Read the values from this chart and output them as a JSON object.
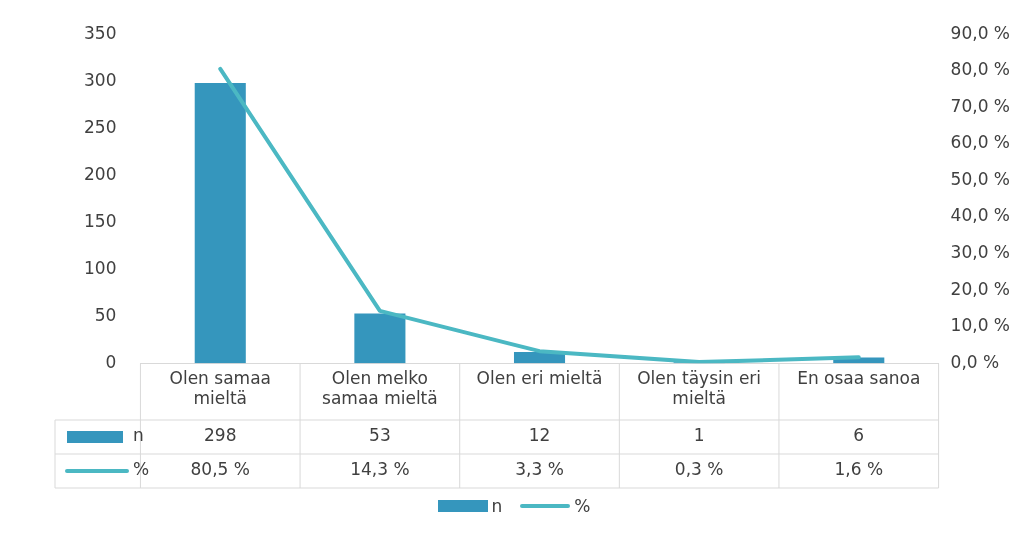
{
  "chart_data": {
    "type": "bar",
    "categories": [
      "Olen samaa mieltä",
      "Olen melko samaa mieltä",
      "Olen eri mieltä",
      "Olen täysin eri mieltä",
      "En osaa sanoa"
    ],
    "series": [
      {
        "name": "n",
        "color": "#3596bd",
        "values": [
          298,
          53,
          12,
          1,
          6
        ],
        "value_labels": [
          "298",
          "53",
          "12",
          "1",
          "6"
        ]
      },
      {
        "name": "%",
        "type": "line",
        "axis": "y2",
        "color": "#4bb8c3",
        "values": [
          80.5,
          14.3,
          3.3,
          0.3,
          1.6
        ],
        "value_labels": [
          "80,5 %",
          "14,3 %",
          "3,3 %",
          "0,3 %",
          "1,6 %"
        ]
      }
    ],
    "ylim": [
      0,
      350
    ],
    "yticks": [
      0,
      50,
      100,
      150,
      200,
      250,
      300,
      350
    ],
    "y2lim": [
      0,
      90
    ],
    "y2ticks": [
      {
        "value": 0,
        "label": "0,0 %"
      },
      {
        "value": 10,
        "label": "10,0 %"
      },
      {
        "value": 20,
        "label": "20,0 %"
      },
      {
        "value": 30,
        "label": "30,0 %"
      },
      {
        "value": 40,
        "label": "40,0 %"
      },
      {
        "value": 50,
        "label": "50,0 %"
      },
      {
        "value": 60,
        "label": "60,0 %"
      },
      {
        "value": 70,
        "label": "70,0 %"
      },
      {
        "value": 80,
        "label": "80,0 %"
      },
      {
        "value": 90,
        "label": "90,0 %"
      }
    ],
    "grid": false,
    "legend": "bottom",
    "marker": "none",
    "line_style": "solid"
  }
}
